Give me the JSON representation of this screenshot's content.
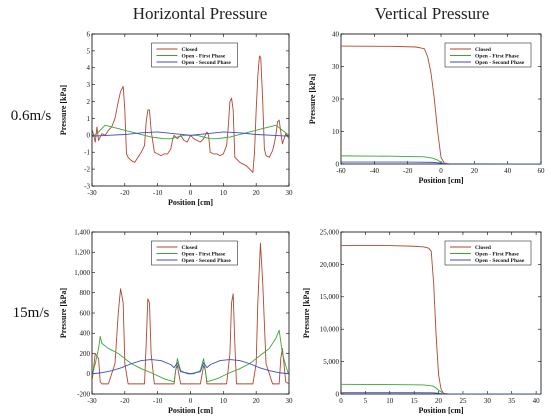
{
  "column_titles": [
    "Horizontal Pressure",
    "Vertical Pressure"
  ],
  "row_labels": [
    "0.6m/s",
    "15m/s"
  ],
  "chart_data": [
    {
      "type": "line",
      "panel": "horizontal-0.6",
      "xlabel": "Position [cm]",
      "ylabel": "Pressure [kPa]",
      "xlim": [
        -30,
        30
      ],
      "ylim": [
        -3,
        6
      ],
      "xticks": [
        -30,
        -20,
        -10,
        0,
        10,
        20,
        30
      ],
      "yticks": [
        -3,
        -2,
        -1,
        0,
        1,
        2,
        3,
        4,
        5,
        6
      ],
      "xtick_labels": [
        "-30",
        "-20",
        "-10",
        "0",
        "10",
        "20",
        "30"
      ],
      "ytick_labels": [
        "-3",
        "-2",
        "-1",
        "0",
        "1",
        "2",
        "3",
        "4",
        "5",
        "6"
      ],
      "legend_position": "top-center",
      "series": [
        {
          "name": "Closed",
          "color": "#b5452f",
          "x": [
            -30,
            -29,
            -28.5,
            -28,
            -27,
            -26,
            -25,
            -24,
            -23,
            -22,
            -21.3,
            -20.5,
            -20,
            -19.5,
            -19,
            -18,
            -17,
            -16,
            -15,
            -14,
            -13.5,
            -13,
            -12.5,
            -12,
            -11,
            -10,
            -9,
            -8,
            -7,
            -6,
            -5.5,
            -5,
            -4,
            -3,
            -2,
            -1,
            0,
            1,
            2,
            3,
            4,
            5,
            5.5,
            6,
            7,
            8,
            9,
            10,
            11,
            11.5,
            12,
            12.5,
            13,
            13.5,
            14,
            15,
            16,
            17,
            18,
            19,
            19.5,
            20,
            20.5,
            21,
            21.4,
            22,
            22.5,
            23,
            24,
            25,
            25.5,
            26,
            26.5,
            27,
            27.5,
            28,
            29,
            30
          ],
          "y": [
            0.4,
            -0.4,
            0.5,
            -0.3,
            0.1,
            0.0,
            0.3,
            0.5,
            1.0,
            2.0,
            2.6,
            2.9,
            1.5,
            -1.1,
            -1.3,
            -1.5,
            -1.6,
            -1.3,
            -1.0,
            -0.6,
            0.8,
            1.5,
            1.5,
            0.3,
            -1.0,
            -1.1,
            -1.2,
            -1.1,
            -1.1,
            -0.8,
            -0.3,
            0.0,
            -0.2,
            0.0,
            -0.3,
            -0.4,
            0.0,
            -0.2,
            -0.3,
            -0.4,
            -0.2,
            0.2,
            0.0,
            -1.0,
            -1.1,
            -1.1,
            -1.2,
            -1.1,
            -0.6,
            0.5,
            2.0,
            2.2,
            1.5,
            -1.3,
            -1.4,
            -1.6,
            -1.7,
            -1.8,
            -2.0,
            -2.2,
            -1.0,
            1.5,
            3.5,
            4.7,
            4.6,
            2.0,
            -0.8,
            -1.2,
            -1.3,
            -0.9,
            -0.5,
            0.0,
            0.8,
            0.9,
            0.2,
            -0.5,
            0.1,
            -0.2
          ]
        },
        {
          "name": "Open - First Phase",
          "color": "#3aa63a",
          "x": [
            -30,
            -28,
            -26,
            -24,
            -22,
            -20,
            -18,
            -16,
            -14,
            -12,
            -10,
            -8,
            -6,
            -4,
            -2,
            0,
            2,
            4,
            6,
            8,
            10,
            12,
            14,
            16,
            18,
            20,
            22,
            24,
            26,
            28,
            30
          ],
          "y": [
            -0.1,
            0.2,
            0.6,
            0.5,
            0.4,
            0.3,
            0.2,
            0.1,
            0.0,
            -0.1,
            -0.15,
            -0.2,
            -0.2,
            -0.1,
            0.0,
            0.0,
            0.0,
            -0.1,
            -0.2,
            -0.2,
            -0.15,
            -0.1,
            0.0,
            0.1,
            0.2,
            0.3,
            0.4,
            0.5,
            0.6,
            0.3,
            0.0
          ]
        },
        {
          "name": "Open - Second Phase",
          "color": "#3a4fc4",
          "x": [
            -30,
            -25,
            -20,
            -15,
            -10,
            -5,
            0,
            5,
            10,
            15,
            20,
            25,
            30
          ],
          "y": [
            -0.05,
            0.0,
            0.05,
            0.15,
            0.2,
            0.1,
            0.0,
            0.1,
            0.2,
            0.15,
            0.05,
            0.0,
            -0.05
          ]
        }
      ]
    },
    {
      "type": "line",
      "panel": "vertical-0.6",
      "xlabel": "Position [cm]",
      "ylabel": "Pressure [kPa]",
      "xlim": [
        -60,
        60
      ],
      "ylim": [
        0,
        40
      ],
      "xticks": [
        -60,
        -40,
        -20,
        0,
        20,
        40,
        60
      ],
      "yticks": [
        0,
        10,
        20,
        30,
        40
      ],
      "xtick_labels": [
        "-60",
        "-40",
        "-20",
        "0",
        "20",
        "40",
        "60"
      ],
      "ytick_labels": [
        "0",
        "10",
        "20",
        "30",
        "40"
      ],
      "legend_position": "top-right",
      "series": [
        {
          "name": "Closed",
          "color": "#b5452f",
          "x": [
            -60,
            -30,
            -15,
            -10,
            -8,
            -6,
            -4,
            -2,
            0,
            2,
            5,
            60
          ],
          "y": [
            36.3,
            36.2,
            36.0,
            35.5,
            33,
            28,
            20,
            10,
            2,
            0.3,
            0.0,
            0.0
          ]
        },
        {
          "name": "Open - First Phase",
          "color": "#3aa63a",
          "x": [
            -60,
            -30,
            -10,
            -5,
            -2,
            0,
            2,
            60
          ],
          "y": [
            2.5,
            2.4,
            2.2,
            1.8,
            1.2,
            0.5,
            0.1,
            0.0
          ]
        },
        {
          "name": "Open - Second Phase",
          "color": "#3a4fc4",
          "x": [
            -60,
            -20,
            -5,
            0,
            2,
            60
          ],
          "y": [
            0.6,
            0.6,
            0.5,
            0.3,
            0.0,
            0.0
          ]
        }
      ]
    },
    {
      "type": "line",
      "panel": "horizontal-15",
      "xlabel": "Position [cm]",
      "ylabel": "Pressure [kPa]",
      "xlim": [
        -30,
        30
      ],
      "ylim": [
        -200,
        1400
      ],
      "xticks": [
        -30,
        -20,
        -10,
        0,
        10,
        20,
        30
      ],
      "yticks": [
        -200,
        0,
        200,
        400,
        600,
        800,
        1000,
        1200,
        1400
      ],
      "xtick_labels": [
        "-30",
        "-20",
        "-10",
        "0",
        "10",
        "20",
        "30"
      ],
      "ytick_labels": [
        "-200",
        "0",
        "200",
        "400",
        "600",
        "800",
        "1,000",
        "1,200",
        "1,400"
      ],
      "legend_position": "top-center",
      "series": [
        {
          "name": "Closed",
          "color": "#b5452f",
          "x": [
            -30,
            -29,
            -28,
            -27.5,
            -27,
            -26,
            -25,
            -23,
            -22,
            -21.3,
            -20.5,
            -20,
            -19,
            -18,
            -16,
            -14,
            -13.5,
            -13,
            -12.5,
            -12,
            -11,
            -10,
            -8,
            -6,
            -5,
            -4.5,
            -4,
            -3,
            0,
            3,
            4,
            4.5,
            5,
            6,
            8,
            10,
            11,
            12,
            12.5,
            13,
            13.5,
            14,
            16,
            18,
            19,
            20,
            20.5,
            21.3,
            22,
            23,
            25,
            26,
            27,
            27.5,
            28,
            29,
            30
          ],
          "y": [
            -80,
            200,
            150,
            -80,
            -100,
            -100,
            -100,
            100,
            600,
            840,
            700,
            100,
            -100,
            -100,
            -100,
            -100,
            300,
            740,
            700,
            200,
            -100,
            -100,
            -100,
            -100,
            -100,
            40,
            80,
            -100,
            -100,
            -100,
            80,
            40,
            -100,
            -100,
            -100,
            -100,
            -100,
            200,
            700,
            790,
            300,
            -100,
            -100,
            -100,
            -100,
            100,
            700,
            1290,
            900,
            100,
            -100,
            -100,
            -100,
            150,
            250,
            -80,
            -100
          ]
        },
        {
          "name": "Open - First Phase",
          "color": "#3aa63a",
          "x": [
            -30,
            -29,
            -28,
            -27.5,
            -27,
            -25,
            -22,
            -20,
            -18,
            -15,
            -12,
            -10,
            -8,
            -6,
            -5,
            -4,
            -3,
            -1,
            0,
            1,
            3,
            4,
            5,
            6,
            8,
            10,
            12,
            15,
            18,
            20,
            22,
            24,
            25,
            26,
            27,
            28,
            29,
            30
          ],
          "y": [
            -20,
            100,
            250,
            370,
            300,
            250,
            200,
            150,
            100,
            50,
            10,
            -20,
            -50,
            -70,
            -80,
            150,
            30,
            0,
            0,
            0,
            30,
            150,
            -80,
            -70,
            -50,
            -20,
            10,
            50,
            100,
            150,
            200,
            250,
            300,
            350,
            430,
            200,
            80,
            -20
          ]
        },
        {
          "name": "Open - Second Phase",
          "color": "#3a4fc4",
          "x": [
            -30,
            -27,
            -24,
            -21,
            -18,
            -15,
            -12,
            -9,
            -6,
            -5,
            -4,
            -3,
            0,
            3,
            4,
            5,
            6,
            9,
            12,
            15,
            18,
            21,
            24,
            27,
            30
          ],
          "y": [
            0,
            10,
            30,
            60,
            100,
            130,
            140,
            130,
            90,
            60,
            110,
            20,
            0,
            20,
            110,
            60,
            90,
            130,
            140,
            130,
            100,
            60,
            30,
            10,
            0
          ]
        }
      ]
    },
    {
      "type": "line",
      "panel": "vertical-15",
      "xlabel": "Position [cm]",
      "ylabel": "Pressure [kPa]",
      "xlim": [
        0,
        41
      ],
      "ylim": [
        0,
        25000
      ],
      "xticks": [
        0,
        5,
        10,
        15,
        20,
        25,
        30,
        35,
        40
      ],
      "yticks": [
        0,
        5000,
        10000,
        15000,
        20000,
        25000
      ],
      "xtick_labels": [
        "0",
        "5",
        "10",
        "15",
        "20",
        "25",
        "30",
        "35",
        "40"
      ],
      "ytick_labels": [
        "0",
        "5,000",
        "10,000",
        "15,000",
        "20,000",
        "25,000"
      ],
      "legend_position": "top-right",
      "series": [
        {
          "name": "Closed",
          "color": "#b5452f",
          "x": [
            0,
            10,
            15,
            17,
            18,
            18.5,
            19,
            19.5,
            20,
            20.5,
            21,
            22,
            41
          ],
          "y": [
            22900,
            22900,
            22800,
            22700,
            22500,
            22000,
            17000,
            9000,
            3000,
            800,
            100,
            0,
            0
          ]
        },
        {
          "name": "Open - First Phase",
          "color": "#3aa63a",
          "x": [
            0,
            10,
            17,
            19,
            20,
            21,
            22,
            41
          ],
          "y": [
            1500,
            1450,
            1400,
            1200,
            600,
            100,
            0,
            0
          ]
        },
        {
          "name": "Open - Second Phase",
          "color": "#3a4fc4",
          "x": [
            0,
            15,
            19,
            20,
            21,
            41
          ],
          "y": [
            200,
            200,
            180,
            100,
            0,
            0
          ]
        }
      ]
    }
  ]
}
